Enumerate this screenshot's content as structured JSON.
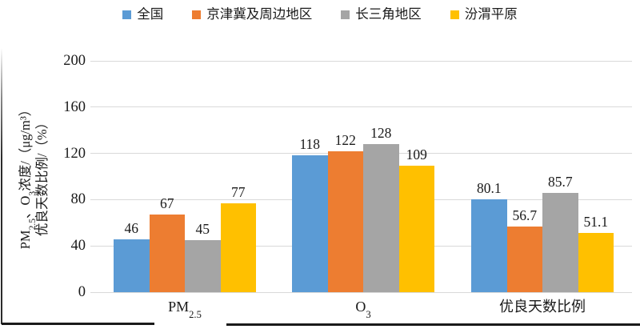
{
  "chart_data": {
    "type": "bar",
    "title": "",
    "categories": [
      "PM2.5",
      "O3",
      "优良天数比例"
    ],
    "category_runs": [
      [
        {
          "t": "PM"
        },
        {
          "t": "2.5",
          "sub": true
        }
      ],
      [
        {
          "t": "O"
        },
        {
          "t": "3",
          "sub": true
        }
      ],
      [
        {
          "t": "优良天数比例"
        }
      ]
    ],
    "series": [
      {
        "name": "全国",
        "color": "#5B9BD5",
        "values": [
          46,
          118,
          80.1
        ]
      },
      {
        "name": "京津冀及周边地区",
        "color": "#ED7D31",
        "values": [
          67,
          122,
          56.7
        ]
      },
      {
        "name": "长三角地区",
        "color": "#A5A5A5",
        "values": [
          45,
          128,
          85.7
        ]
      },
      {
        "name": "汾渭平原",
        "color": "#FFC000",
        "values": [
          77,
          109,
          51.1
        ]
      }
    ],
    "ylabel_line1_runs": [
      {
        "t": "PM"
      },
      {
        "t": "2.5",
        "sub": true
      },
      {
        "t": "、O"
      },
      {
        "t": "3",
        "sub": true
      },
      {
        "t": "浓度/（μg/m³）"
      }
    ],
    "ylabel_line2_runs": [
      {
        "t": "优良天数比例/（%）"
      }
    ],
    "yticks": [
      0,
      40,
      80,
      120,
      160,
      200
    ],
    "ylim": [
      0,
      200
    ],
    "grid": true,
    "legend_position": "top"
  },
  "colors": {
    "gridline": "#D9D9D9",
    "text": "#1a1a1a",
    "page_border": "#1a1a1a"
  }
}
